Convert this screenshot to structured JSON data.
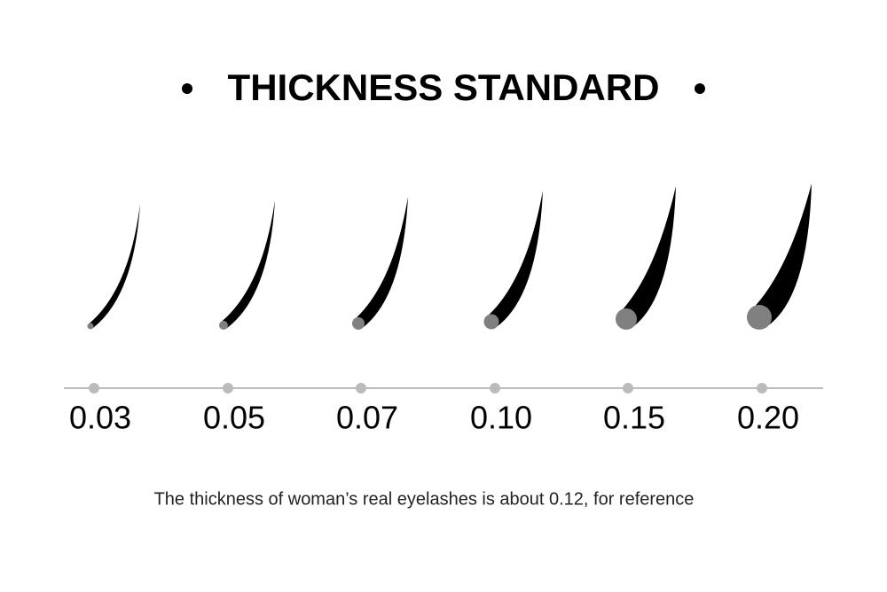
{
  "header": {
    "title": "THICKNESS STANDARD"
  },
  "items": [
    {
      "label": "0.03"
    },
    {
      "label": "0.05"
    },
    {
      "label": "0.07"
    },
    {
      "label": "0.10"
    },
    {
      "label": "0.15"
    },
    {
      "label": "0.20"
    }
  ],
  "note": "The thickness of woman’s real eyelashes is about 0.12, for reference"
}
